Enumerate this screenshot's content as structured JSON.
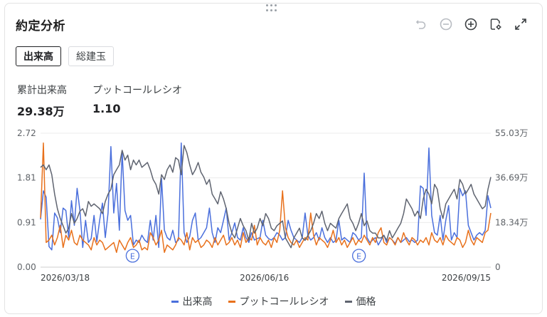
{
  "header": {
    "title": "約定分析"
  },
  "tabs": [
    {
      "label": "出来高",
      "active": true
    },
    {
      "label": "総建玉",
      "active": false
    }
  ],
  "stats": [
    {
      "label": "累計出来高",
      "value": "29.38万"
    },
    {
      "label": "プットコールレシオ",
      "value": "1.10"
    }
  ],
  "toolbar": [
    "undo-icon",
    "zoom-out-icon",
    "zoom-in-icon",
    "settings-icon",
    "expand-icon"
  ],
  "colors": {
    "volume": "#4a6fdc",
    "pcr": "#e8711c",
    "price": "#5f6470",
    "grid": "#ececec"
  },
  "chart_data": {
    "type": "line",
    "x_start": "2026/03/18",
    "x_end": "2026/09/15",
    "x_tick_labels": [
      "2026/03/18",
      "2026/06/16",
      "2026/09/15"
    ],
    "left_axis": {
      "ticks": [
        "2.72",
        "1.81",
        "0.91",
        "0.00"
      ],
      "ylim": [
        0,
        2.72
      ]
    },
    "right_axis": {
      "ticks": [
        "55.03万",
        "36.69万",
        "18.34万",
        "0"
      ],
      "ylim": [
        0,
        55.03
      ]
    },
    "event_markers": [
      {
        "label": "E",
        "date": "2026/04/24"
      },
      {
        "label": "E",
        "date": "2026/07/24"
      }
    ],
    "series": [
      {
        "name": "出来高",
        "axis": "left",
        "values": [
          0.97,
          1.55,
          1.42,
          0.42,
          0.35,
          1.1,
          1.0,
          0.7,
          1.2,
          1.15,
          0.6,
          1.35,
          0.85,
          1.6,
          1.15,
          0.4,
          0.95,
          0.5,
          0.58,
          1.05,
          0.52,
          0.95,
          1.3,
          0.6,
          1.1,
          2.45,
          1.1,
          1.7,
          0.75,
          2.35,
          1.15,
          0.95,
          1.05,
          0.45,
          0.55,
          0.5,
          0.65,
          0.55,
          0.5,
          0.95,
          0.55,
          1.05,
          0.4,
          1.8,
          0.75,
          0.6,
          0.55,
          0.75,
          0.5,
          0.55,
          2.52,
          0.7,
          0.5,
          0.62,
          0.95,
          1.1,
          0.55,
          0.6,
          0.7,
          0.8,
          1.2,
          0.7,
          0.5,
          0.8,
          0.7,
          0.95,
          1.2,
          0.55,
          0.7,
          0.9,
          0.6,
          0.55,
          0.8,
          0.6,
          0.5,
          0.7,
          0.55,
          0.58,
          0.6,
          0.95,
          0.65,
          0.58,
          0.55,
          0.6,
          0.7,
          0.65,
          0.55,
          0.6,
          0.95,
          0.75,
          0.6,
          0.55,
          0.5,
          0.6,
          1.1,
          0.65,
          0.55,
          0.6,
          0.7,
          0.55,
          0.8,
          0.6,
          0.5,
          0.6,
          0.5,
          0.55,
          0.95,
          0.55,
          0.6,
          0.55,
          0.5,
          0.7,
          0.65,
          0.55,
          0.6,
          1.91,
          0.6,
          0.5,
          0.55,
          0.6,
          0.45,
          0.55,
          0.65,
          0.5,
          0.6,
          0.55,
          0.48,
          0.6,
          0.5,
          0.55,
          0.6,
          0.52,
          0.55,
          0.5,
          0.55,
          1.65,
          1.6,
          1.05,
          2.42,
          1.05,
          0.7,
          0.65,
          1.05,
          0.55,
          0.95,
          1.25,
          0.55,
          0.7,
          0.6,
          1.6,
          1.45,
          1.55,
          0.85,
          0.7,
          0.55,
          0.65,
          0.7,
          0.65,
          0.75,
          1.45,
          1.2
        ]
      },
      {
        "name": "プットコールレシオ",
        "axis": "left",
        "values": [
          1.0,
          2.52,
          0.5,
          0.55,
          0.65,
          0.45,
          0.6,
          0.85,
          0.4,
          0.65,
          0.55,
          0.75,
          0.5,
          0.45,
          0.65,
          0.55,
          0.5,
          0.45,
          0.35,
          0.6,
          0.45,
          0.55,
          0.5,
          0.35,
          0.4,
          0.45,
          0.5,
          0.3,
          0.55,
          0.45,
          0.35,
          0.5,
          0.6,
          0.4,
          0.45,
          0.55,
          0.35,
          0.4,
          0.35,
          0.7,
          0.6,
          0.45,
          0.55,
          0.75,
          0.3,
          0.45,
          0.4,
          0.35,
          0.45,
          0.6,
          0.55,
          0.45,
          0.7,
          0.35,
          0.6,
          0.5,
          0.55,
          0.4,
          0.45,
          0.55,
          0.5,
          0.4,
          0.6,
          0.45,
          0.55,
          0.65,
          0.45,
          0.5,
          0.6,
          0.45,
          0.55,
          0.4,
          0.7,
          0.5,
          0.6,
          0.55,
          0.85,
          0.45,
          0.6,
          0.5,
          0.45,
          0.55,
          0.4,
          0.6,
          0.5,
          0.75,
          1.55,
          0.8,
          0.6,
          0.5,
          0.45,
          0.55,
          0.4,
          0.5,
          0.6,
          0.55,
          1.1,
          0.65,
          0.45,
          0.6,
          0.55,
          0.5,
          0.4,
          0.55,
          0.75,
          0.5,
          0.6,
          0.45,
          0.55,
          0.4,
          0.5,
          0.6,
          0.45,
          0.55,
          0.5,
          0.65,
          0.55,
          0.45,
          0.6,
          0.5,
          0.7,
          0.8,
          0.5,
          0.45,
          0.6,
          0.55,
          0.45,
          0.6,
          0.5,
          0.7,
          0.55,
          0.45,
          0.6,
          0.55,
          0.45,
          0.55,
          0.5,
          0.6,
          0.45,
          0.7,
          0.55,
          0.5,
          0.6,
          0.45,
          0.65,
          0.55,
          0.5,
          0.45,
          0.6,
          0.55,
          0.4,
          0.5,
          0.75,
          0.55,
          0.45,
          0.6,
          0.55,
          0.5,
          0.7,
          0.75,
          1.1
        ]
      },
      {
        "name": "価格",
        "axis": "right",
        "values": [
          41,
          42,
          40,
          42,
          38,
          30,
          24,
          20,
          17,
          14,
          16,
          22,
          18,
          20,
          23,
          24,
          21,
          27,
          25,
          26,
          25,
          24,
          22,
          27,
          30,
          32,
          38,
          40,
          42,
          48,
          44,
          46,
          40,
          44,
          42,
          44,
          41,
          42,
          43,
          40,
          36,
          34,
          30,
          38,
          36,
          40,
          42,
          39,
          45,
          44,
          38,
          50,
          47,
          42,
          38,
          40,
          43,
          39,
          37,
          34,
          36,
          30,
          28,
          26,
          31,
          28,
          24,
          18,
          14,
          12,
          16,
          20,
          17,
          15,
          11,
          18,
          14,
          16,
          20,
          17,
          22,
          20,
          16,
          15,
          17,
          18,
          19,
          12,
          10,
          8,
          12,
          14,
          16,
          12,
          11,
          13,
          15,
          18,
          22,
          20,
          23,
          18,
          15,
          18,
          17,
          16,
          20,
          22,
          24,
          26,
          20,
          18,
          15,
          18,
          22,
          17,
          19,
          15,
          14,
          14,
          12,
          12,
          13,
          11,
          15,
          12,
          14,
          16,
          18,
          22,
          28,
          26,
          24,
          21,
          23,
          20,
          28,
          32,
          30,
          26,
          34,
          32,
          24,
          20,
          26,
          28,
          30,
          32,
          28,
          36,
          34,
          30,
          32,
          34,
          30,
          28,
          26,
          24,
          25,
          32,
          37
        ]
      }
    ],
    "grid": true,
    "legend": "bottom-center"
  }
}
